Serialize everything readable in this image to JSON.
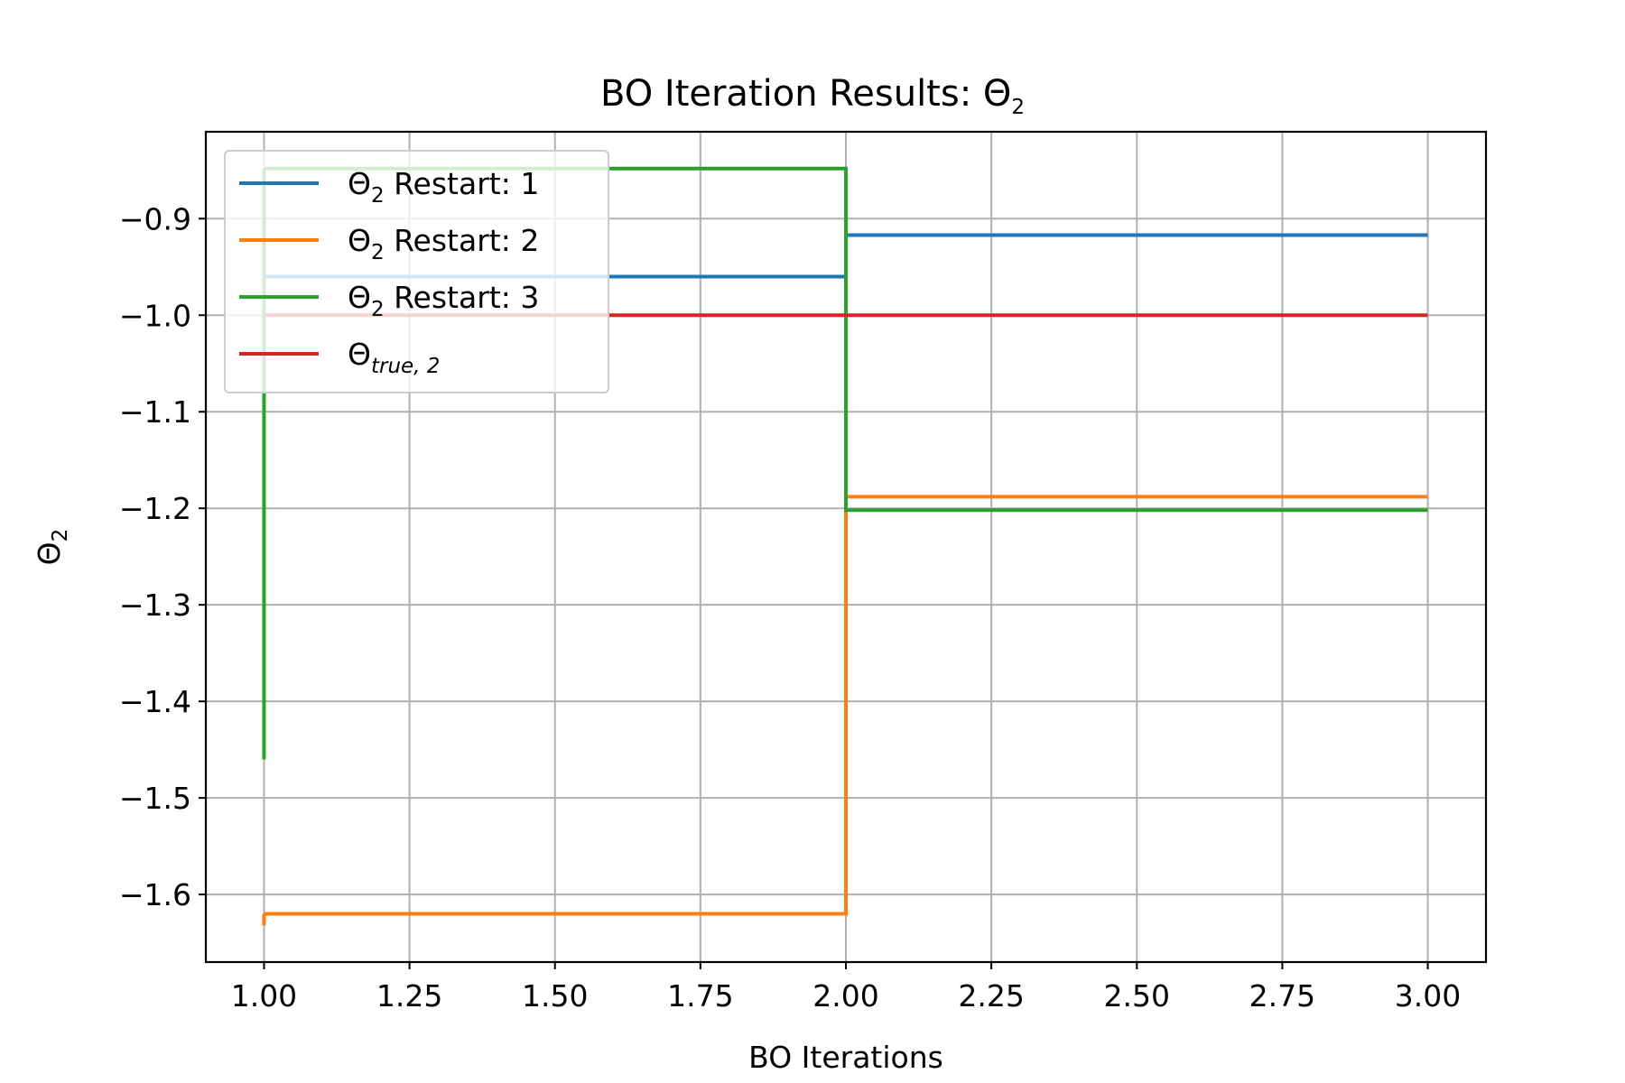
{
  "chart_data": {
    "type": "line",
    "title": "BO Iteration Results: Θ",
    "title_subscript": "2",
    "xlabel": "BO Iterations",
    "ylabel": "Θ",
    "ylabel_subscript": "2",
    "xlim": [
      0.9,
      3.1
    ],
    "ylim": [
      -1.67,
      -0.81
    ],
    "grid": true,
    "legend_position": "upper-left",
    "step": "post",
    "x_ticks": [
      1.0,
      1.25,
      1.5,
      1.75,
      2.0,
      2.25,
      2.5,
      2.75,
      3.0
    ],
    "x_tick_labels": [
      "1.00",
      "1.25",
      "1.50",
      "1.75",
      "2.00",
      "2.25",
      "2.50",
      "2.75",
      "3.00"
    ],
    "y_ticks": [
      -0.9,
      -1.0,
      -1.1,
      -1.2,
      -1.3,
      -1.4,
      -1.5,
      -1.6
    ],
    "y_tick_labels": [
      "−0.9",
      "−1.0",
      "−1.1",
      "−1.2",
      "−1.3",
      "−1.4",
      "−1.5",
      "−1.6"
    ],
    "series": [
      {
        "name": "Θ2 Restart: 1",
        "legend_base": "Θ",
        "legend_sub": "2",
        "legend_rest": " Restart: 1",
        "sub_italic": false,
        "color": "#1f77b4",
        "x": [
          1,
          2,
          3
        ],
        "y": [
          -0.96,
          -0.917,
          -0.917
        ]
      },
      {
        "name": "Θ2 Restart: 2",
        "legend_base": "Θ",
        "legend_sub": "2",
        "legend_rest": " Restart: 2",
        "sub_italic": false,
        "color": "#ff7f0e",
        "x": [
          1,
          2,
          3
        ],
        "y": [
          -1.62,
          -1.188,
          -1.188
        ]
      },
      {
        "name": "Θ2 Restart: 3",
        "legend_base": "Θ",
        "legend_sub": "2",
        "legend_rest": " Restart: 3",
        "sub_italic": false,
        "color": "#2ca02c",
        "x": [
          1,
          2,
          3
        ],
        "y": [
          -0.848,
          -1.202,
          -1.202
        ]
      },
      {
        "name": "Θtrue,2",
        "legend_base": "Θ",
        "legend_sub": "true, 2",
        "legend_rest": "",
        "sub_italic": true,
        "color": "#d62728",
        "x": [
          1,
          2,
          3
        ],
        "y": [
          -1.0,
          -1.0,
          -1.0
        ]
      }
    ],
    "extra_segments": [
      {
        "series_index": 1,
        "x": 1.0,
        "y_from": -1.632,
        "y_to": -1.62
      },
      {
        "series_index": 2,
        "x": 1.0,
        "y_from": -1.46,
        "y_to": -0.848
      }
    ]
  }
}
